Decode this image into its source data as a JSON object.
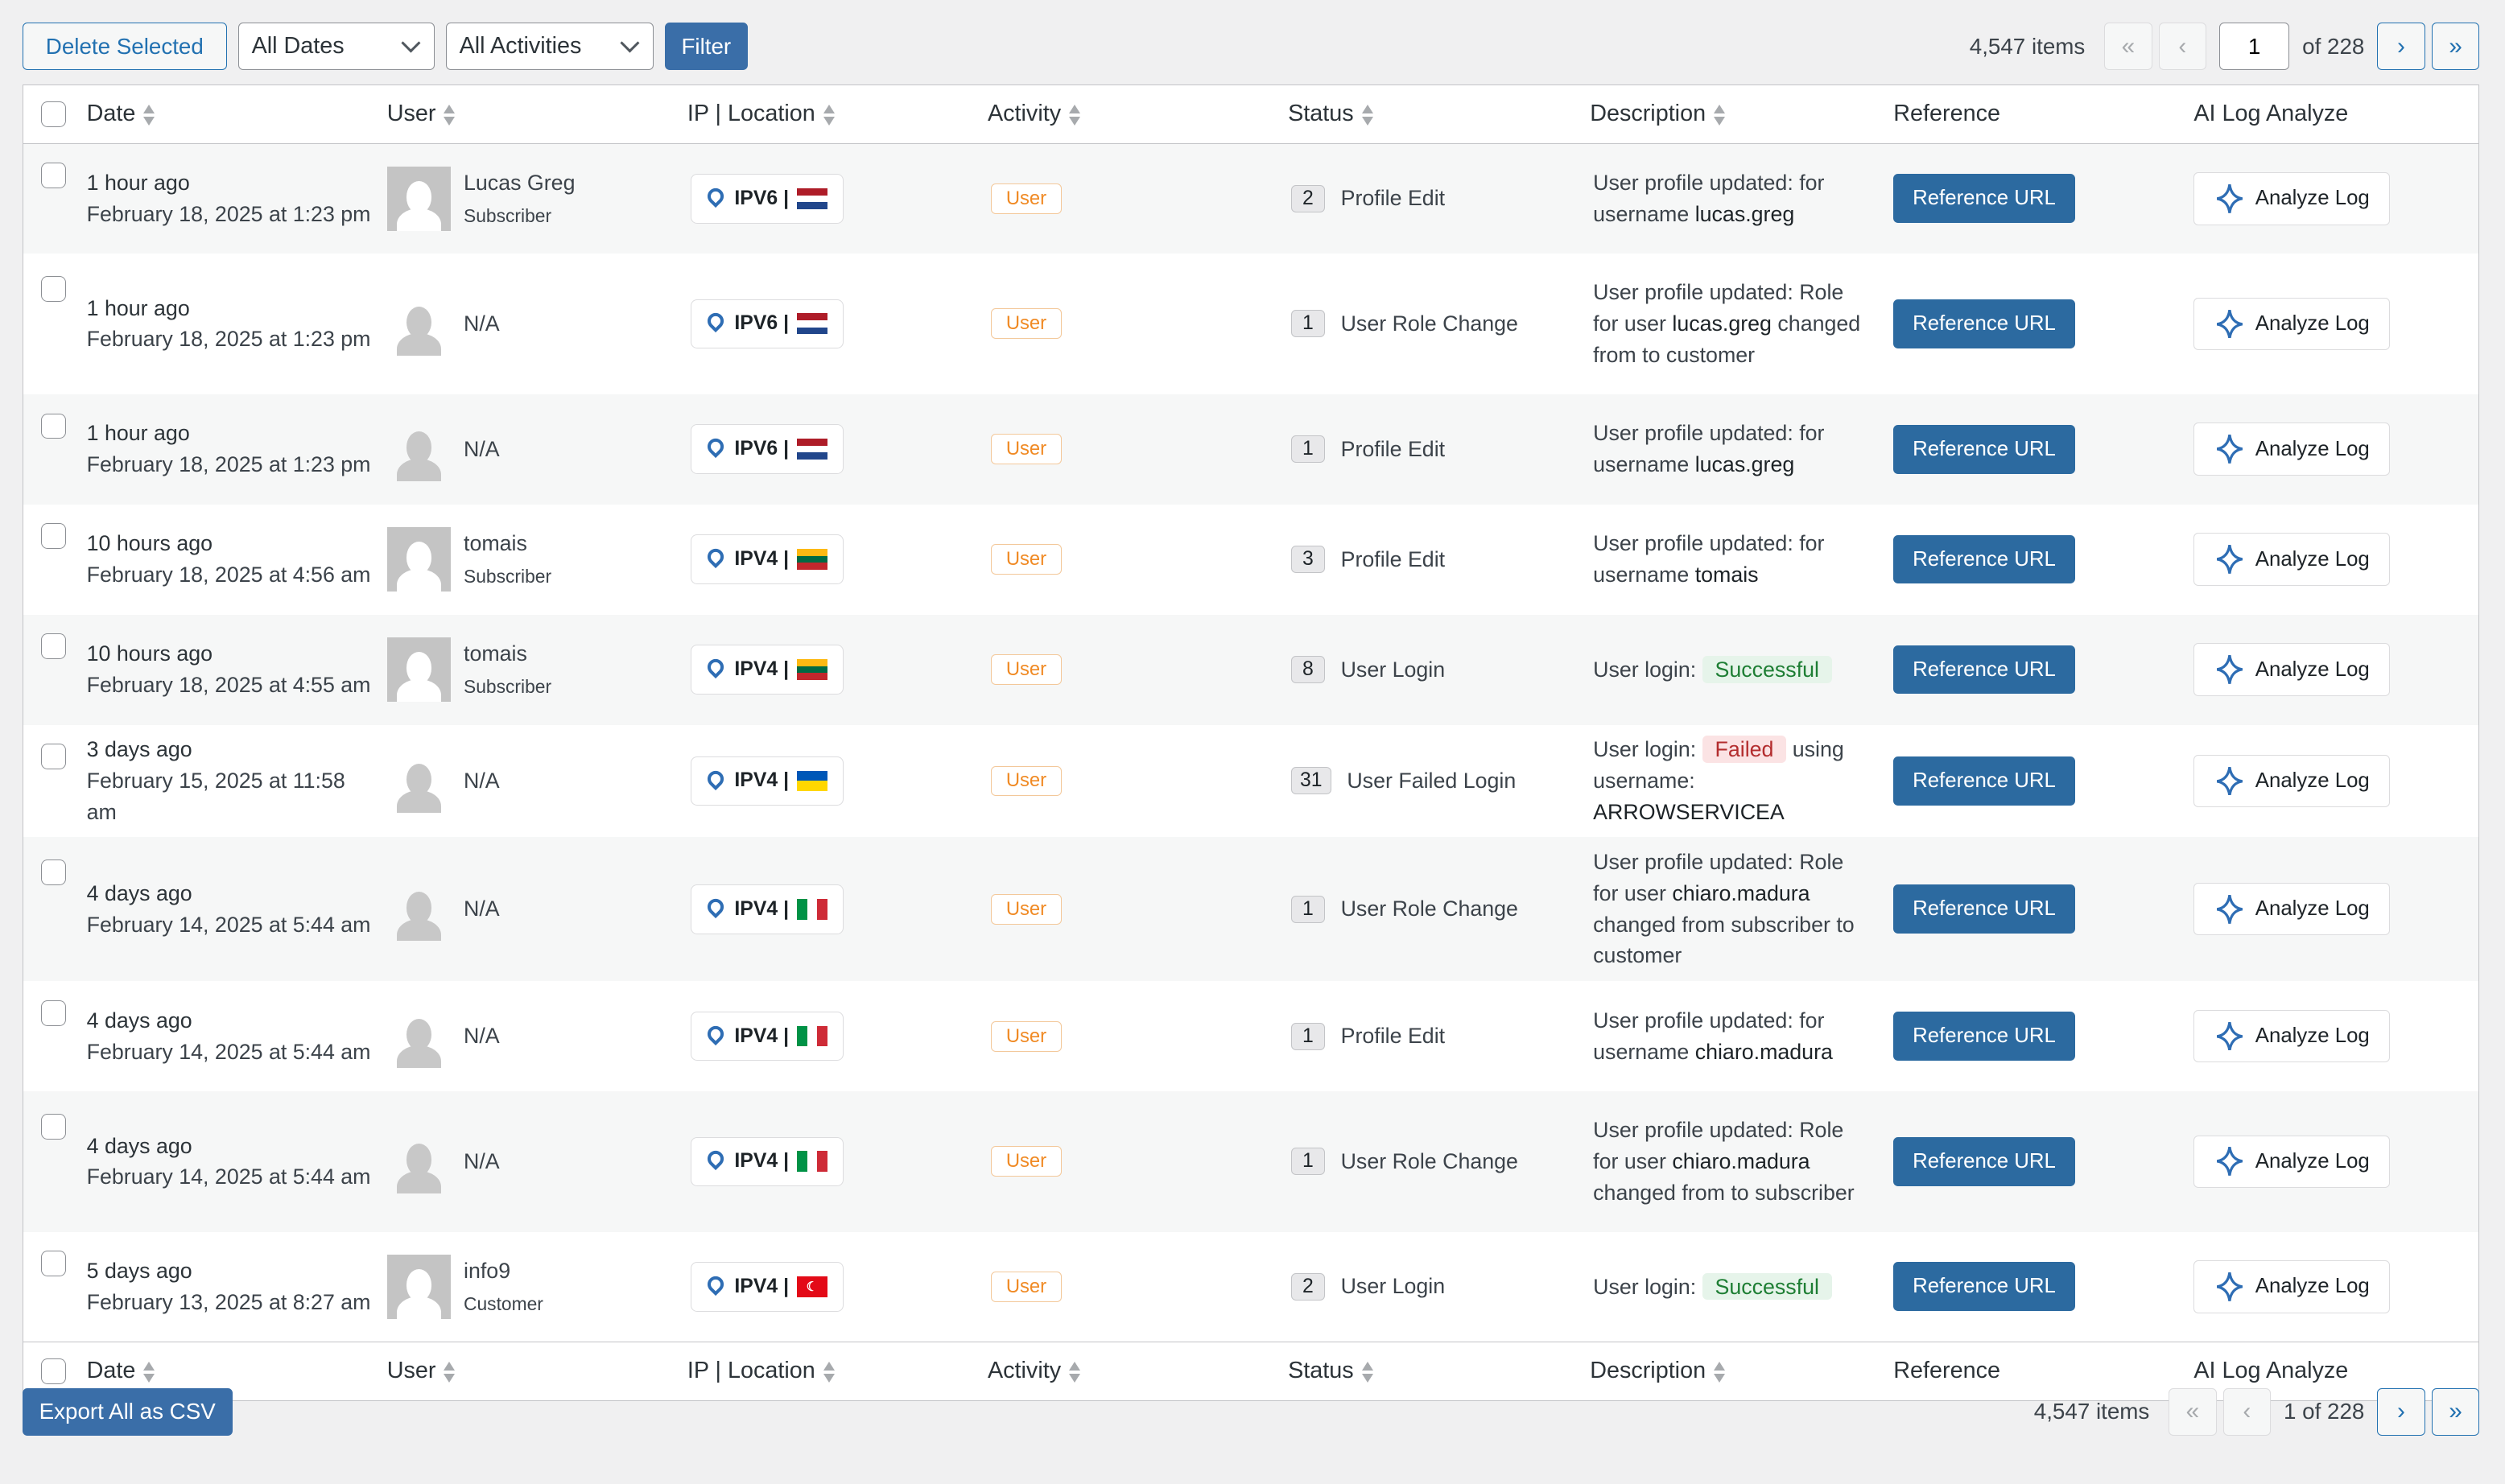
{
  "toolbar": {
    "delete_label": "Delete Selected",
    "dates_value": "All Dates",
    "activities_value": "All Activities",
    "filter_label": "Filter"
  },
  "pagination_top": {
    "items": "4,547 items",
    "first": "«",
    "prev": "‹",
    "page": "1",
    "of": "of 228",
    "next": "›",
    "last": "»"
  },
  "pagination_bottom": {
    "items": "4,547 items",
    "first": "«",
    "prev": "‹",
    "page_text": "1 of 228",
    "next": "›",
    "last": "»"
  },
  "columns": [
    "Date",
    "User",
    "IP | Location",
    "Activity",
    "Status",
    "Description",
    "Reference",
    "AI Log Analyze"
  ],
  "rows": [
    {
      "ago": "1 hour ago",
      "date": "February 18, 2025 at 1:23 pm",
      "user": "Lucas Greg",
      "role": "Subscriber",
      "avatar": true,
      "ip": "IPV6 |",
      "flag": "nl",
      "activity": "User",
      "count": "2",
      "status": "Profile Edit",
      "desc": [
        [
          "User profile updated: for username ",
          ""
        ],
        [
          "lucas.greg",
          "b"
        ]
      ]
    },
    {
      "ago": "1 hour ago",
      "date": "February 18, 2025 at 1:23 pm",
      "user": "N/A",
      "role": "",
      "avatar": false,
      "ip": "IPV6 |",
      "flag": "nl",
      "activity": "User",
      "count": "1",
      "status": "User Role Change",
      "desc": [
        [
          "User profile updated: Role for user ",
          ""
        ],
        [
          "lucas.greg",
          "b"
        ],
        [
          " changed from to customer",
          ""
        ]
      ]
    },
    {
      "ago": "1 hour ago",
      "date": "February 18, 2025 at 1:23 pm",
      "user": "N/A",
      "role": "",
      "avatar": false,
      "ip": "IPV6 |",
      "flag": "nl",
      "activity": "User",
      "count": "1",
      "status": "Profile Edit",
      "desc": [
        [
          "User profile updated: for username ",
          ""
        ],
        [
          "lucas.greg",
          "b"
        ]
      ]
    },
    {
      "ago": "10 hours ago",
      "date": "February 18, 2025 at 4:56 am",
      "user": "tomais",
      "role": "Subscriber",
      "avatar": true,
      "ip": "IPV4 |",
      "flag": "lt",
      "activity": "User",
      "count": "3",
      "status": "Profile Edit",
      "desc": [
        [
          "User profile updated: for username ",
          ""
        ],
        [
          "tomais",
          "b"
        ]
      ]
    },
    {
      "ago": "10 hours ago",
      "date": "February 18, 2025 at 4:55 am",
      "user": "tomais",
      "role": "Subscriber",
      "avatar": true,
      "ip": "IPV4 |",
      "flag": "lt",
      "activity": "User",
      "count": "8",
      "status": "User Login",
      "desc": [
        [
          "User login: ",
          ""
        ],
        [
          "Successful",
          "ok"
        ]
      ]
    },
    {
      "ago": "3 days ago",
      "date": "February 15, 2025 at 11:58 am",
      "user": "N/A",
      "role": "",
      "avatar": false,
      "ip": "IPV4 |",
      "flag": "ua",
      "activity": "User",
      "count": "31",
      "status": "User Failed Login",
      "desc": [
        [
          "User login: ",
          ""
        ],
        [
          "Failed",
          "fail"
        ],
        [
          " using username: ",
          ""
        ],
        [
          "ARROWSERVICEA",
          "b"
        ]
      ]
    },
    {
      "ago": "4 days ago",
      "date": "February 14, 2025 at 5:44 am",
      "user": "N/A",
      "role": "",
      "avatar": false,
      "ip": "IPV4 |",
      "flag": "it",
      "activity": "User",
      "count": "1",
      "status": "User Role Change",
      "desc": [
        [
          "User profile updated: Role for user ",
          ""
        ],
        [
          "chiaro.madura",
          "b"
        ],
        [
          " changed from subscriber to customer",
          ""
        ]
      ]
    },
    {
      "ago": "4 days ago",
      "date": "February 14, 2025 at 5:44 am",
      "user": "N/A",
      "role": "",
      "avatar": false,
      "ip": "IPV4 |",
      "flag": "it",
      "activity": "User",
      "count": "1",
      "status": "Profile Edit",
      "desc": [
        [
          "User profile updated: for username ",
          ""
        ],
        [
          "chiaro.madura",
          "b"
        ]
      ]
    },
    {
      "ago": "4 days ago",
      "date": "February 14, 2025 at 5:44 am",
      "user": "N/A",
      "role": "",
      "avatar": false,
      "ip": "IPV4 |",
      "flag": "it",
      "activity": "User",
      "count": "1",
      "status": "User Role Change",
      "desc": [
        [
          "User profile updated: Role for user ",
          ""
        ],
        [
          "chiaro.madura",
          "b"
        ],
        [
          " changed from to subscriber",
          ""
        ]
      ]
    },
    {
      "ago": "5 days ago",
      "date": "February 13, 2025 at 8:27 am",
      "user": "info9",
      "role": "Customer",
      "avatar": true,
      "ip": "IPV4 |",
      "flag": "tr",
      "activity": "User",
      "count": "2",
      "status": "User Login",
      "desc": [
        [
          "User login: ",
          ""
        ],
        [
          "Successful",
          "ok"
        ]
      ]
    }
  ],
  "reference_label": "Reference URL",
  "analyze_label": "Analyze Log",
  "export_label": "Export All as CSV",
  "colors": {
    "accent": "#2271b1",
    "reference_button": "#2c6aa0",
    "activity_badge": "#f08a24",
    "success": "#1e7e34",
    "failed": "#b32d2e"
  }
}
